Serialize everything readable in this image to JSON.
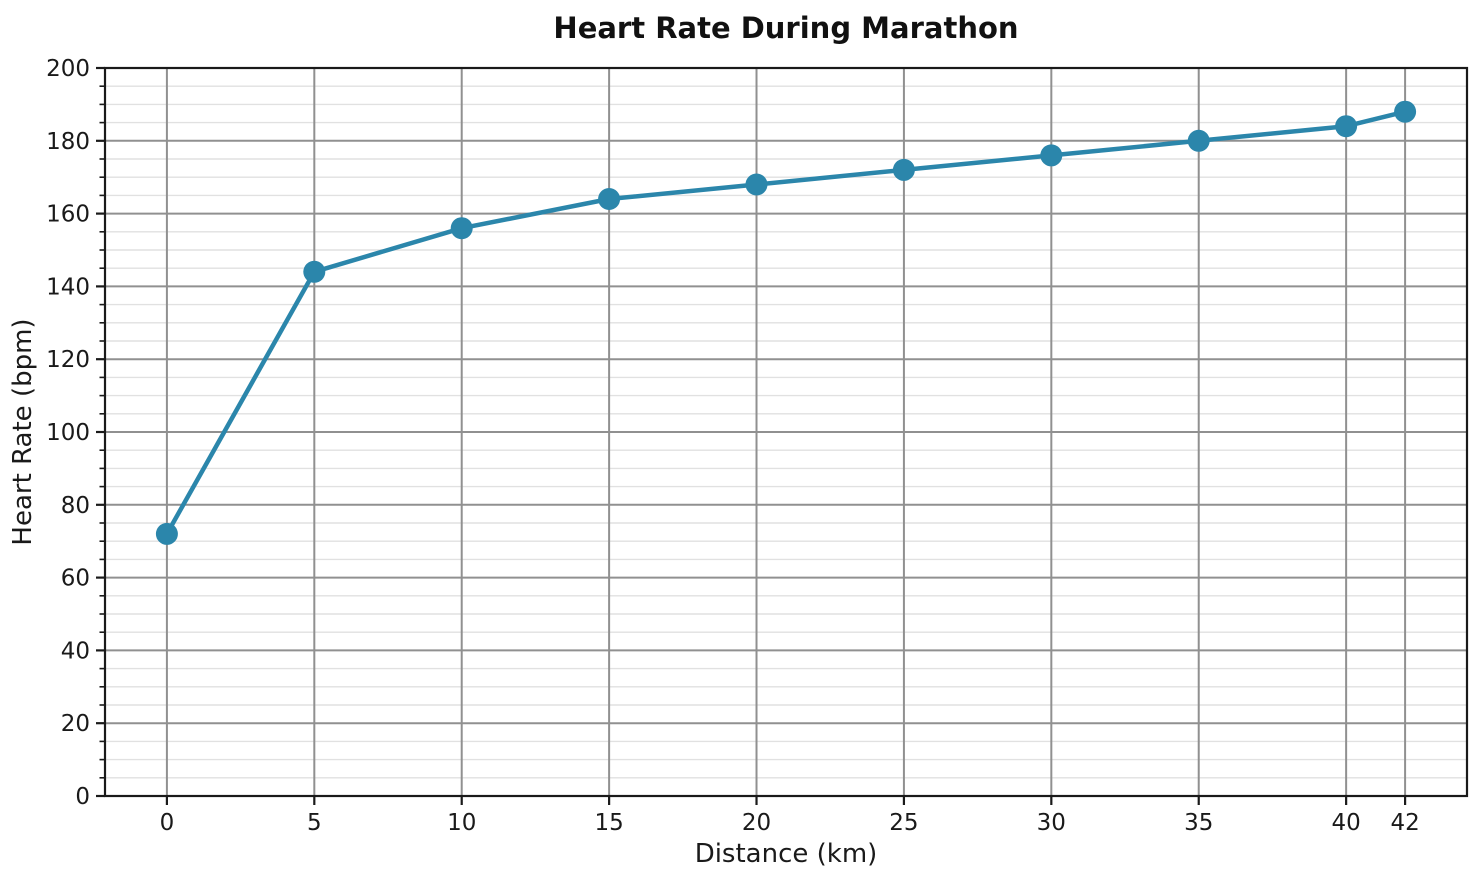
{
  "figure": {
    "background": "#ffffff"
  },
  "chart_data": {
    "type": "line",
    "title": "Heart Rate During Marathon",
    "xlabel": "Distance (km)",
    "ylabel": "Heart Rate (bpm)",
    "x": [
      0,
      5,
      10,
      15,
      20,
      25,
      30,
      35,
      40,
      42
    ],
    "y": [
      72,
      144,
      156,
      164,
      168,
      172,
      176,
      180,
      184,
      188
    ],
    "xticks": [
      0,
      5,
      10,
      15,
      20,
      25,
      30,
      35,
      40,
      42
    ],
    "xtick_labels": [
      "0",
      "5",
      "10",
      "15",
      "20",
      "25",
      "30",
      "35",
      "40",
      "42"
    ],
    "yticks": [
      0,
      20,
      40,
      60,
      80,
      100,
      120,
      140,
      160,
      180,
      200
    ],
    "ytick_labels": [
      "0",
      "20",
      "40",
      "60",
      "80",
      "100",
      "120",
      "140",
      "160",
      "180",
      "200"
    ],
    "y_minor_step": 5,
    "xlim": [
      -2.1,
      44.1
    ],
    "ylim": [
      0,
      200
    ],
    "grid": "major-and-minor-y",
    "legend_position": "none",
    "marker": "circle",
    "colors": {
      "line": "#2b86ab",
      "marker": "#2b86ab",
      "major_grid": "#909090",
      "minor_grid": "#e1e1e1",
      "axis": "#1a1a1a",
      "text": "#1a1a1a",
      "background": "#ffffff"
    }
  }
}
